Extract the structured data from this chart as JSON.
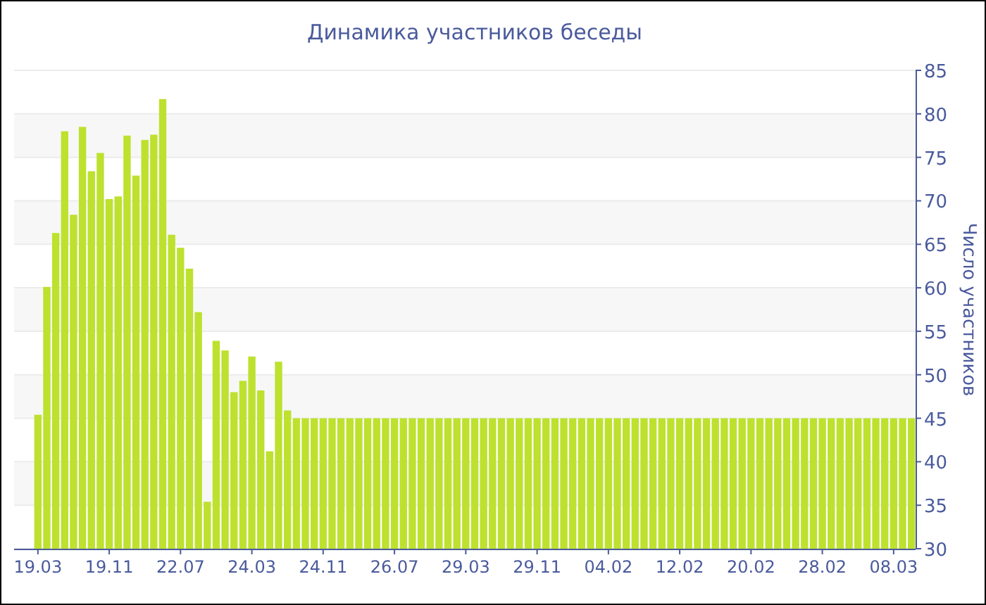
{
  "chart_data": {
    "type": "bar",
    "title": "Динамика участников беседы",
    "ylabel": "Число участников",
    "color": "#bde12e",
    "grid": "y",
    "ylim": [
      30,
      85
    ],
    "yticks": [
      30,
      35,
      40,
      45,
      50,
      55,
      60,
      65,
      70,
      75,
      80,
      85
    ],
    "categories": [
      "19.03",
      null,
      null,
      null,
      null,
      null,
      null,
      null,
      "19.11",
      null,
      null,
      null,
      null,
      null,
      null,
      null,
      "22.07",
      null,
      null,
      null,
      null,
      null,
      null,
      null,
      "24.03",
      null,
      null,
      null,
      null,
      null,
      null,
      null,
      "24.11",
      null,
      null,
      null,
      null,
      null,
      null,
      null,
      "26.07",
      null,
      null,
      null,
      null,
      null,
      null,
      null,
      "29.03",
      null,
      null,
      null,
      null,
      null,
      null,
      null,
      "29.11",
      null,
      null,
      null,
      null,
      null,
      null,
      null,
      "04.02",
      null,
      null,
      null,
      null,
      null,
      null,
      null,
      "12.02",
      null,
      null,
      null,
      null,
      null,
      null,
      null,
      "20.02",
      null,
      null,
      null,
      null,
      null,
      null,
      null,
      "28.02",
      null,
      null,
      null,
      null,
      null,
      null,
      null,
      "08.03",
      null,
      null
    ],
    "values": [
      45.4,
      60.1,
      66.3,
      78,
      68.4,
      78.5,
      73.4,
      75.5,
      70.2,
      70.5,
      77.5,
      72.9,
      77,
      77.6,
      81.7,
      66.1,
      64.6,
      62.2,
      57.2,
      35.4,
      53.9,
      52.8,
      48,
      49.3,
      52.1,
      48.2,
      41.2,
      51.5,
      45.9,
      45,
      45,
      45,
      45,
      45,
      45,
      45,
      45,
      45,
      45,
      45,
      45,
      45,
      45,
      45,
      45,
      45,
      45,
      45,
      45,
      45,
      45,
      45,
      45,
      45,
      45,
      45,
      45,
      45,
      45,
      45,
      45,
      45,
      45,
      45,
      45,
      45,
      45,
      45,
      45,
      45,
      45,
      45,
      45,
      45,
      45,
      45,
      45,
      45,
      45,
      45,
      45,
      45,
      45,
      45,
      45,
      45,
      45,
      45,
      45,
      45,
      45,
      45,
      45,
      45,
      45,
      45,
      45,
      45,
      45
    ]
  }
}
